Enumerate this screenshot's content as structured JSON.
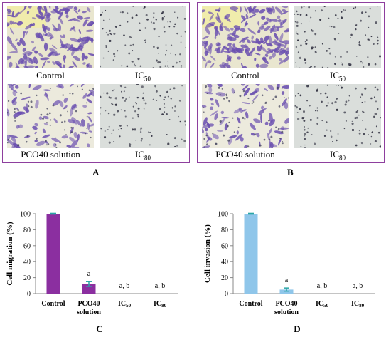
{
  "figure": {
    "panel_A": {
      "letter": "A",
      "images": [
        {
          "label": "Control",
          "sub": "",
          "tone": "dense"
        },
        {
          "label": "IC",
          "sub": "50",
          "tone": "sparse"
        },
        {
          "label": "PCO40 solution",
          "sub": "",
          "tone": "medium"
        },
        {
          "label": "IC",
          "sub": "80",
          "tone": "sparse"
        }
      ]
    },
    "panel_B": {
      "letter": "B",
      "images": [
        {
          "label": "Control",
          "sub": "",
          "tone": "dense"
        },
        {
          "label": "IC",
          "sub": "50",
          "tone": "sparse"
        },
        {
          "label": "PCO40 solution",
          "sub": "",
          "tone": "medium"
        },
        {
          "label": "IC",
          "sub": "80",
          "tone": "sparse"
        }
      ]
    },
    "colors": {
      "frame": "#8e3f9e",
      "stain": "#6a4fb0",
      "migration_bar": "#8b2fa0",
      "invasion_bar": "#8fc6ea",
      "error_bar": "#2aa6a6"
    }
  },
  "chart_data": [
    {
      "type": "bar",
      "letter": "C",
      "categories": [
        "Control",
        "PCO40\nsolution",
        "IC50",
        "IC80"
      ],
      "values": [
        100,
        12,
        0,
        0
      ],
      "errors": [
        0.5,
        3,
        0,
        0
      ],
      "annotations": [
        "",
        "a",
        "a, b",
        "a, b"
      ],
      "ylabel": "Cell migration (%)",
      "ylim": [
        0,
        100
      ],
      "yticks": [
        0,
        20,
        40,
        60,
        80,
        100
      ],
      "color": "#8b2fa0"
    },
    {
      "type": "bar",
      "letter": "D",
      "categories": [
        "Control",
        "PCO40\nsolution",
        "IC50",
        "IC80"
      ],
      "values": [
        100,
        5,
        0,
        0
      ],
      "errors": [
        0.5,
        2,
        0,
        0
      ],
      "annotations": [
        "",
        "a",
        "a, b",
        "a, b"
      ],
      "ylabel": "Cell invasion (%)",
      "ylim": [
        0,
        100
      ],
      "yticks": [
        0,
        20,
        40,
        60,
        80,
        100
      ],
      "color": "#8fc6ea"
    }
  ]
}
